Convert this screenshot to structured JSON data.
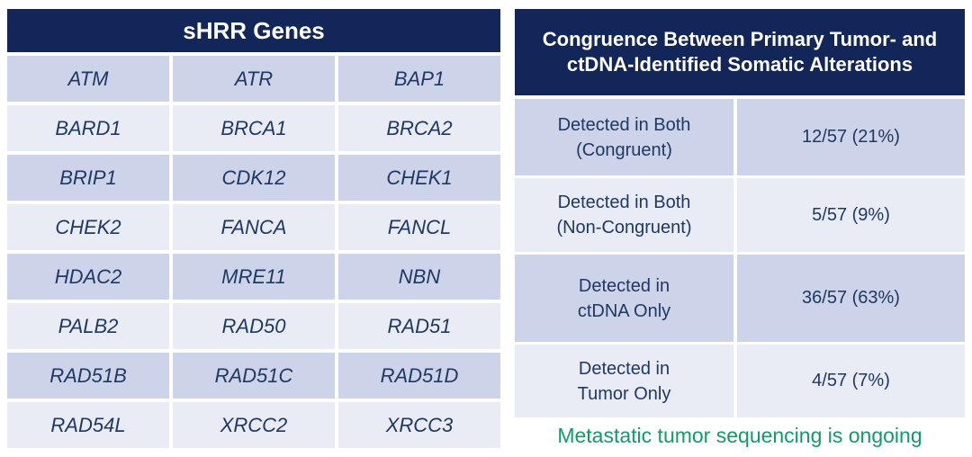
{
  "colors": {
    "header_navy": "#12265a",
    "row_dark": "#cdd3e8",
    "row_light": "#e9ecf5",
    "text_navy": "#1f3864",
    "footnote_green": "#119c67"
  },
  "genes_table": {
    "title": "sHRR Genes",
    "rows": [
      [
        "ATM",
        "ATR",
        "BAP1"
      ],
      [
        "BARD1",
        "BRCA1",
        "BRCA2"
      ],
      [
        "BRIP1",
        "CDK12",
        "CHEK1"
      ],
      [
        "CHEK2",
        "FANCA",
        "FANCL"
      ],
      [
        "HDAC2",
        "MRE11",
        "NBN"
      ],
      [
        "PALB2",
        "RAD50",
        "RAD51"
      ],
      [
        "RAD51B",
        "RAD51C",
        "RAD51D"
      ],
      [
        "RAD54L",
        "XRCC2",
        "XRCC3"
      ]
    ]
  },
  "congruence_table": {
    "title_line1": "Congruence Between Primary Tumor- and",
    "title_line2": "ctDNA-Identified Somatic Alterations",
    "rows": [
      {
        "label_line1": "Detected in Both",
        "label_line2": "(Congruent)",
        "value": "12/57 (21%)"
      },
      {
        "label_line1": "Detected in Both",
        "label_line2": "(Non-Congruent)",
        "value": "5/57 (9%)"
      },
      {
        "label_line1": "Detected in",
        "label_line2": "ctDNA Only",
        "value": "36/57 (63%)"
      },
      {
        "label_line1": "Detected in",
        "label_line2": "Tumor Only",
        "value": "4/57 (7%)"
      }
    ],
    "footnote": "Metastatic tumor sequencing is ongoing"
  }
}
